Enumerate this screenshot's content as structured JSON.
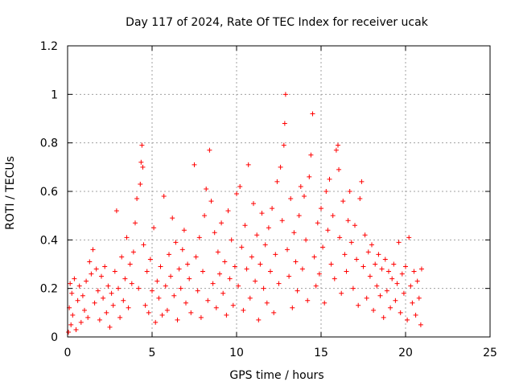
{
  "chart_data": {
    "type": "scatter",
    "title": "Day 117 of 2024, Rate Of TEC Index for receiver ucak",
    "xlabel": "GPS time / hours",
    "ylabel": "ROTI / TECUs",
    "xlim": [
      0,
      25
    ],
    "ylim": [
      0,
      1.2
    ],
    "x_ticks": [
      "0",
      "5",
      "10",
      "15",
      "20",
      "25"
    ],
    "y_ticks": [
      "0",
      "0.2",
      "0.4",
      "0.6",
      "0.8",
      "1",
      "1.2"
    ],
    "x_tick_values": [
      0,
      5,
      10,
      15,
      20,
      25
    ],
    "y_tick_values": [
      0,
      0.2,
      0.4,
      0.6,
      0.8,
      1.0,
      1.2
    ],
    "grid": true,
    "marker": "plus",
    "color": "#ff0000",
    "series": [
      {
        "name": "",
        "points": [
          [
            0.05,
            0.02
          ],
          [
            0.1,
            0.12
          ],
          [
            0.15,
            0.22
          ],
          [
            0.2,
            0.05
          ],
          [
            0.25,
            0.18
          ],
          [
            0.3,
            0.09
          ],
          [
            0.4,
            0.24
          ],
          [
            0.5,
            0.03
          ],
          [
            0.6,
            0.15
          ],
          [
            0.7,
            0.21
          ],
          [
            0.8,
            0.06
          ],
          [
            0.9,
            0.17
          ],
          [
            1.0,
            0.11
          ],
          [
            1.1,
            0.23
          ],
          [
            1.2,
            0.08
          ],
          [
            1.3,
            0.31
          ],
          [
            1.4,
            0.26
          ],
          [
            1.5,
            0.36
          ],
          [
            1.6,
            0.14
          ],
          [
            1.7,
            0.28
          ],
          [
            1.8,
            0.19
          ],
          [
            1.9,
            0.07
          ],
          [
            2.0,
            0.25
          ],
          [
            2.1,
            0.16
          ],
          [
            2.2,
            0.29
          ],
          [
            2.3,
            0.1
          ],
          [
            2.4,
            0.21
          ],
          [
            2.5,
            0.04
          ],
          [
            2.6,
            0.18
          ],
          [
            2.7,
            0.13
          ],
          [
            2.8,
            0.27
          ],
          [
            2.9,
            0.52
          ],
          [
            3.0,
            0.2
          ],
          [
            3.1,
            0.08
          ],
          [
            3.2,
            0.33
          ],
          [
            3.3,
            0.15
          ],
          [
            3.4,
            0.24
          ],
          [
            3.5,
            0.41
          ],
          [
            3.6,
            0.12
          ],
          [
            3.7,
            0.3
          ],
          [
            3.8,
            0.22
          ],
          [
            3.9,
            0.35
          ],
          [
            4.0,
            0.47
          ],
          [
            4.1,
            0.57
          ],
          [
            4.2,
            0.2
          ],
          [
            4.3,
            0.63
          ],
          [
            4.35,
            0.72
          ],
          [
            4.4,
            0.79
          ],
          [
            4.45,
            0.7
          ],
          [
            4.5,
            0.38
          ],
          [
            4.6,
            0.13
          ],
          [
            4.7,
            0.27
          ],
          [
            4.8,
            0.1
          ],
          [
            4.9,
            0.32
          ],
          [
            5.0,
            0.19
          ],
          [
            5.1,
            0.45
          ],
          [
            5.2,
            0.06
          ],
          [
            5.3,
            0.23
          ],
          [
            5.4,
            0.16
          ],
          [
            5.5,
            0.29
          ],
          [
            5.6,
            0.09
          ],
          [
            5.7,
            0.58
          ],
          [
            5.8,
            0.21
          ],
          [
            5.9,
            0.11
          ],
          [
            6.0,
            0.34
          ],
          [
            6.1,
            0.25
          ],
          [
            6.2,
            0.49
          ],
          [
            6.3,
            0.17
          ],
          [
            6.4,
            0.39
          ],
          [
            6.5,
            0.07
          ],
          [
            6.6,
            0.28
          ],
          [
            6.7,
            0.2
          ],
          [
            6.8,
            0.36
          ],
          [
            6.9,
            0.44
          ],
          [
            7.0,
            0.14
          ],
          [
            7.1,
            0.3
          ],
          [
            7.2,
            0.24
          ],
          [
            7.3,
            0.1
          ],
          [
            7.5,
            0.71
          ],
          [
            7.6,
            0.33
          ],
          [
            7.7,
            0.19
          ],
          [
            7.8,
            0.41
          ],
          [
            7.9,
            0.08
          ],
          [
            8.0,
            0.27
          ],
          [
            8.1,
            0.5
          ],
          [
            8.2,
            0.61
          ],
          [
            8.3,
            0.15
          ],
          [
            8.4,
            0.77
          ],
          [
            8.5,
            0.56
          ],
          [
            8.6,
            0.22
          ],
          [
            8.7,
            0.43
          ],
          [
            8.8,
            0.12
          ],
          [
            8.9,
            0.35
          ],
          [
            9.0,
            0.26
          ],
          [
            9.1,
            0.47
          ],
          [
            9.2,
            0.18
          ],
          [
            9.3,
            0.31
          ],
          [
            9.4,
            0.09
          ],
          [
            9.5,
            0.52
          ],
          [
            9.6,
            0.24
          ],
          [
            9.7,
            0.4
          ],
          [
            9.8,
            0.13
          ],
          [
            9.9,
            0.29
          ],
          [
            10.0,
            0.59
          ],
          [
            10.1,
            0.21
          ],
          [
            10.2,
            0.62
          ],
          [
            10.3,
            0.37
          ],
          [
            10.4,
            0.11
          ],
          [
            10.5,
            0.46
          ],
          [
            10.6,
            0.28
          ],
          [
            10.7,
            0.71
          ],
          [
            10.8,
            0.16
          ],
          [
            10.9,
            0.33
          ],
          [
            11.0,
            0.55
          ],
          [
            11.1,
            0.23
          ],
          [
            11.2,
            0.42
          ],
          [
            11.3,
            0.07
          ],
          [
            11.4,
            0.3
          ],
          [
            11.5,
            0.51
          ],
          [
            11.6,
            0.2
          ],
          [
            11.7,
            0.38
          ],
          [
            11.8,
            0.14
          ],
          [
            11.9,
            0.45
          ],
          [
            12.0,
            0.27
          ],
          [
            12.1,
            0.53
          ],
          [
            12.2,
            0.1
          ],
          [
            12.3,
            0.34
          ],
          [
            12.4,
            0.64
          ],
          [
            12.5,
            0.22
          ],
          [
            12.6,
            0.7
          ],
          [
            12.7,
            0.48
          ],
          [
            12.8,
            0.79
          ],
          [
            12.85,
            0.88
          ],
          [
            12.9,
            1.0
          ],
          [
            13.0,
            0.36
          ],
          [
            13.1,
            0.25
          ],
          [
            13.2,
            0.57
          ],
          [
            13.3,
            0.12
          ],
          [
            13.4,
            0.43
          ],
          [
            13.5,
            0.31
          ],
          [
            13.6,
            0.19
          ],
          [
            13.7,
            0.5
          ],
          [
            13.8,
            0.62
          ],
          [
            13.9,
            0.28
          ],
          [
            14.0,
            0.58
          ],
          [
            14.1,
            0.4
          ],
          [
            14.2,
            0.15
          ],
          [
            14.3,
            0.66
          ],
          [
            14.4,
            0.75
          ],
          [
            14.5,
            0.92
          ],
          [
            14.6,
            0.33
          ],
          [
            14.7,
            0.21
          ],
          [
            14.8,
            0.47
          ],
          [
            14.9,
            0.26
          ],
          [
            15.0,
            0.53
          ],
          [
            15.1,
            0.37
          ],
          [
            15.2,
            0.14
          ],
          [
            15.3,
            0.6
          ],
          [
            15.4,
            0.44
          ],
          [
            15.5,
            0.65
          ],
          [
            15.6,
            0.3
          ],
          [
            15.7,
            0.5
          ],
          [
            15.8,
            0.24
          ],
          [
            15.9,
            0.77
          ],
          [
            16.0,
            0.79
          ],
          [
            16.05,
            0.69
          ],
          [
            16.1,
            0.41
          ],
          [
            16.2,
            0.18
          ],
          [
            16.3,
            0.56
          ],
          [
            16.4,
            0.34
          ],
          [
            16.5,
            0.27
          ],
          [
            16.6,
            0.48
          ],
          [
            16.7,
            0.6
          ],
          [
            16.8,
            0.39
          ],
          [
            16.9,
            0.2
          ],
          [
            17.0,
            0.46
          ],
          [
            17.1,
            0.32
          ],
          [
            17.2,
            0.13
          ],
          [
            17.3,
            0.57
          ],
          [
            17.4,
            0.64
          ],
          [
            17.5,
            0.29
          ],
          [
            17.6,
            0.42
          ],
          [
            17.7,
            0.16
          ],
          [
            17.8,
            0.35
          ],
          [
            17.9,
            0.25
          ],
          [
            18.0,
            0.38
          ],
          [
            18.1,
            0.11
          ],
          [
            18.2,
            0.3
          ],
          [
            18.3,
            0.21
          ],
          [
            18.4,
            0.34
          ],
          [
            18.5,
            0.17
          ],
          [
            18.6,
            0.28
          ],
          [
            18.7,
            0.08
          ],
          [
            18.8,
            0.32
          ],
          [
            18.9,
            0.19
          ],
          [
            19.0,
            0.27
          ],
          [
            19.1,
            0.12
          ],
          [
            19.2,
            0.24
          ],
          [
            19.3,
            0.3
          ],
          [
            19.4,
            0.15
          ],
          [
            19.5,
            0.22
          ],
          [
            19.6,
            0.39
          ],
          [
            19.7,
            0.1
          ],
          [
            19.8,
            0.26
          ],
          [
            19.9,
            0.18
          ],
          [
            20.0,
            0.29
          ],
          [
            20.1,
            0.07
          ],
          [
            20.2,
            0.41
          ],
          [
            20.3,
            0.21
          ],
          [
            20.4,
            0.14
          ],
          [
            20.5,
            0.27
          ],
          [
            20.6,
            0.09
          ],
          [
            20.7,
            0.23
          ],
          [
            20.8,
            0.16
          ],
          [
            20.9,
            0.05
          ],
          [
            20.95,
            0.28
          ]
        ]
      }
    ]
  }
}
